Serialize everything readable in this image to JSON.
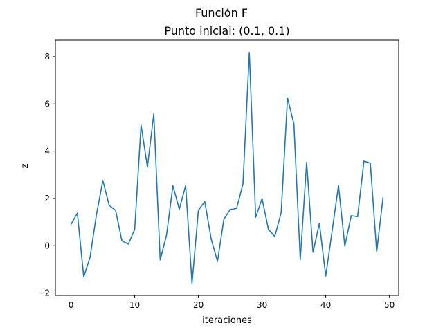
{
  "chart_data": {
    "type": "line",
    "title": "Función F",
    "subtitle": "Punto inicial: (0.1, 0.1)",
    "xlabel": "iteraciones",
    "ylabel": "z",
    "xlim": [
      -2.45,
      51.45
    ],
    "ylim": [
      -2.1,
      8.7
    ],
    "xticks": [
      0,
      10,
      20,
      30,
      40,
      50
    ],
    "yticks": [
      -2,
      0,
      2,
      4,
      6,
      8
    ],
    "grid": false,
    "color": "#1f77b4",
    "series": [
      {
        "x": [
          0,
          1,
          2,
          3,
          4,
          5,
          6,
          7,
          8,
          9,
          10,
          11,
          12,
          13,
          14,
          15,
          16,
          17,
          18,
          19,
          20,
          21,
          22,
          23,
          24,
          25,
          26,
          27,
          28,
          29,
          30,
          31,
          32,
          33,
          34,
          35,
          36,
          37,
          38,
          39,
          40,
          41,
          42,
          43,
          44,
          45,
          46,
          47,
          48,
          49
        ],
        "values": [
          0.9,
          1.38,
          -1.32,
          -0.48,
          1.32,
          2.76,
          1.7,
          1.5,
          0.2,
          0.07,
          0.69,
          5.1,
          3.33,
          5.58,
          -0.6,
          0.45,
          2.54,
          1.55,
          2.54,
          -1.6,
          1.5,
          1.87,
          0.3,
          -0.67,
          1.12,
          1.53,
          1.58,
          2.61,
          8.18,
          1.2,
          2.0,
          0.69,
          0.39,
          1.4,
          6.25,
          5.15,
          -0.59,
          3.53,
          -0.28,
          0.95,
          -1.28,
          0.62,
          2.55,
          -0.02,
          1.27,
          1.23,
          3.58,
          3.49,
          -0.26,
          2.05
        ]
      }
    ]
  }
}
